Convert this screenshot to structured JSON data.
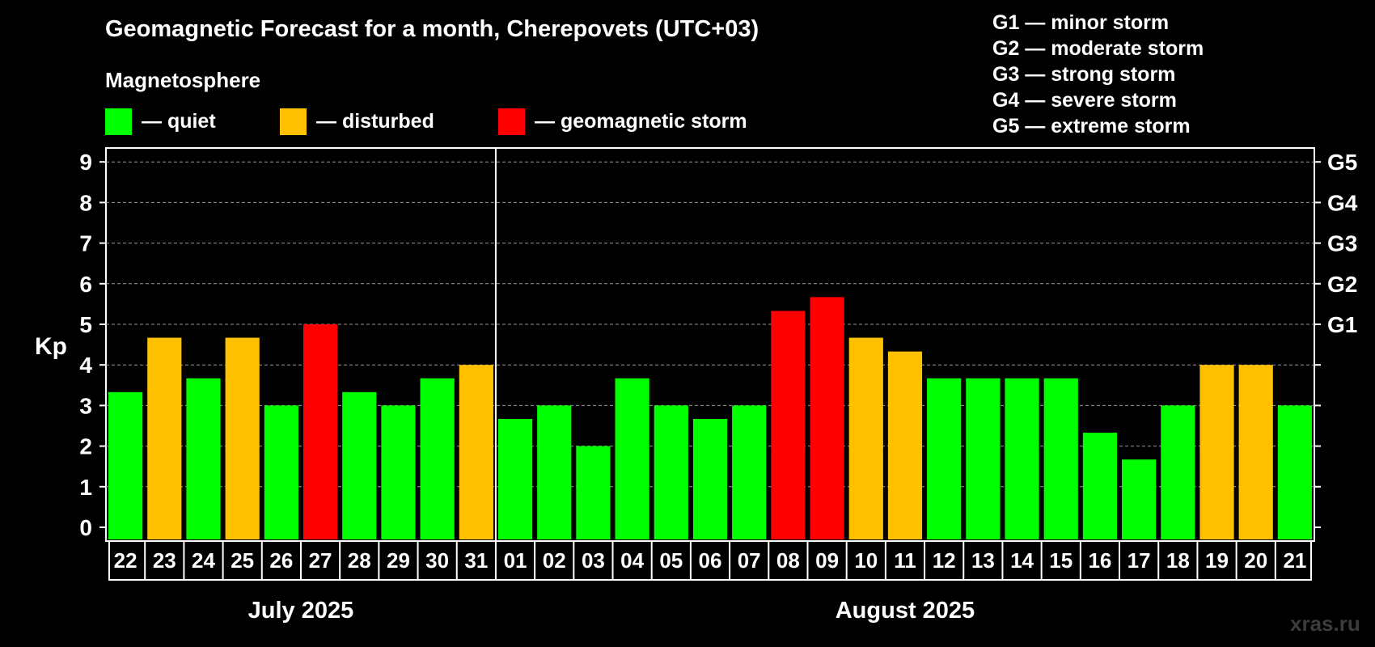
{
  "chart_data": {
    "type": "bar",
    "title": "Geomagnetic Forecast for a month, Cherepovets (UTC+03)",
    "subtitle": "Magnetosphere",
    "ylabel": "Kp",
    "ylim": [
      0,
      9.3
    ],
    "yticks": [
      "0",
      "1",
      "2",
      "3",
      "4",
      "5",
      "6",
      "7",
      "8",
      "9"
    ],
    "right_axis_labels": [
      {
        "kp": 5,
        "label": "G1"
      },
      {
        "kp": 6,
        "label": "G2"
      },
      {
        "kp": 7,
        "label": "G3"
      },
      {
        "kp": 8,
        "label": "G4"
      },
      {
        "kp": 9,
        "label": "G5"
      }
    ],
    "grid": true,
    "legend": [
      {
        "label": "— quiet",
        "color": "#00ff00"
      },
      {
        "label": "— disturbed",
        "color": "#ffc000"
      },
      {
        "label": "— geomagnetic storm",
        "color": "#ff0000"
      }
    ],
    "g_scale": [
      "G1 — minor storm",
      "G2 — moderate storm",
      "G3 — strong storm",
      "G4 — severe storm",
      "G5 — extreme storm"
    ],
    "months": [
      {
        "label": "July 2025",
        "first": 0,
        "last": 9
      },
      {
        "label": "August 2025",
        "first": 10,
        "last": 30
      }
    ],
    "categories": [
      "22",
      "23",
      "24",
      "25",
      "26",
      "27",
      "28",
      "29",
      "30",
      "31",
      "01",
      "02",
      "03",
      "04",
      "05",
      "06",
      "07",
      "08",
      "09",
      "10",
      "11",
      "12",
      "13",
      "14",
      "15",
      "16",
      "17",
      "18",
      "19",
      "20",
      "21"
    ],
    "values": [
      3.33,
      4.67,
      3.67,
      4.67,
      3,
      5,
      3.33,
      3,
      3.67,
      4,
      2.67,
      3,
      2,
      3.67,
      3,
      2.67,
      3,
      5.33,
      5.67,
      4.67,
      4.33,
      3.67,
      3.67,
      3.67,
      3.67,
      2.33,
      1.67,
      3,
      4,
      4,
      3
    ],
    "levels": [
      "quiet",
      "disturbed",
      "quiet",
      "disturbed",
      "quiet",
      "storm",
      "quiet",
      "quiet",
      "quiet",
      "disturbed",
      "quiet",
      "quiet",
      "quiet",
      "quiet",
      "quiet",
      "quiet",
      "quiet",
      "storm",
      "storm",
      "disturbed",
      "disturbed",
      "quiet",
      "quiet",
      "quiet",
      "quiet",
      "quiet",
      "quiet",
      "quiet",
      "disturbed",
      "disturbed",
      "quiet"
    ],
    "level_colors": {
      "quiet": "#00ff00",
      "disturbed": "#ffc000",
      "storm": "#ff0000"
    }
  },
  "watermark": "xras.ru"
}
